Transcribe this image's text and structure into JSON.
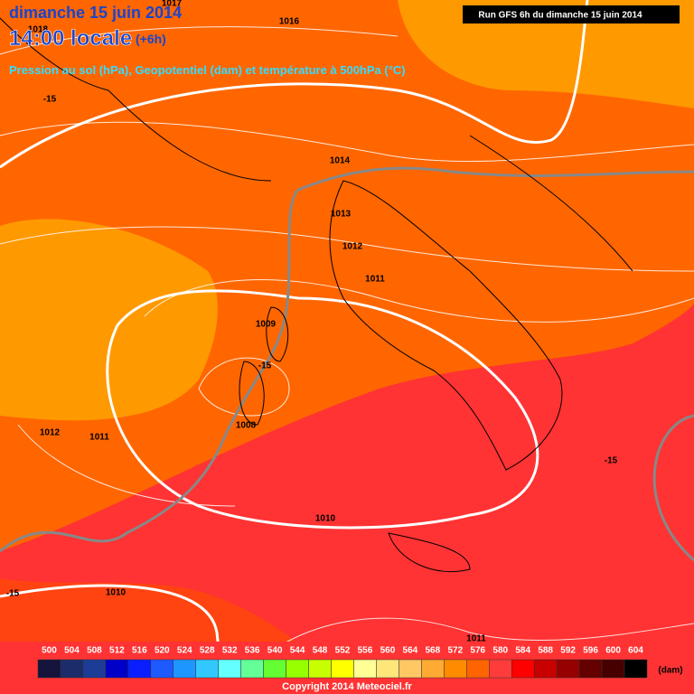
{
  "header": {
    "date": "dimanche 15 juin 2014",
    "time": "14:00 locale",
    "offset": "(+6h)",
    "subtitle": "Pression au sol (hPa), Geopotentiel (dam) et température à 500hPa (°C)",
    "run": "Run GFS 6h du dimanche 15 juin 2014"
  },
  "map_labels": [
    "1017",
    "1016",
    "1018",
    "-15",
    "1014",
    "1013",
    "1012",
    "1011",
    "1009",
    "-15",
    "1008",
    "1012",
    "1011",
    "-15",
    "1010",
    "1010",
    "-15",
    "1011"
  ],
  "legend": {
    "values": [
      "500",
      "504",
      "508",
      "512",
      "516",
      "520",
      "524",
      "528",
      "532",
      "536",
      "540",
      "544",
      "548",
      "552",
      "556",
      "560",
      "564",
      "568",
      "572",
      "576",
      "580",
      "584",
      "588",
      "592",
      "596",
      "600",
      "604"
    ],
    "colors": [
      "#14143c",
      "#1c2c6a",
      "#1c3c96",
      "#0000c8",
      "#0a1eff",
      "#1e5aff",
      "#1e96ff",
      "#32c8ff",
      "#64ffff",
      "#64ff96",
      "#64ff32",
      "#96ff00",
      "#c8ff00",
      "#ffff00",
      "#ffff96",
      "#ffe67a",
      "#ffc864",
      "#ffaa32",
      "#ff8c00",
      "#ff6400",
      "#ff3c3c",
      "#ff0000",
      "#c80000",
      "#960000",
      "#640000",
      "#460000",
      "#000000"
    ],
    "unit": "(dam)"
  },
  "copyright": "Copyright 2014 Meteociel.fr"
}
